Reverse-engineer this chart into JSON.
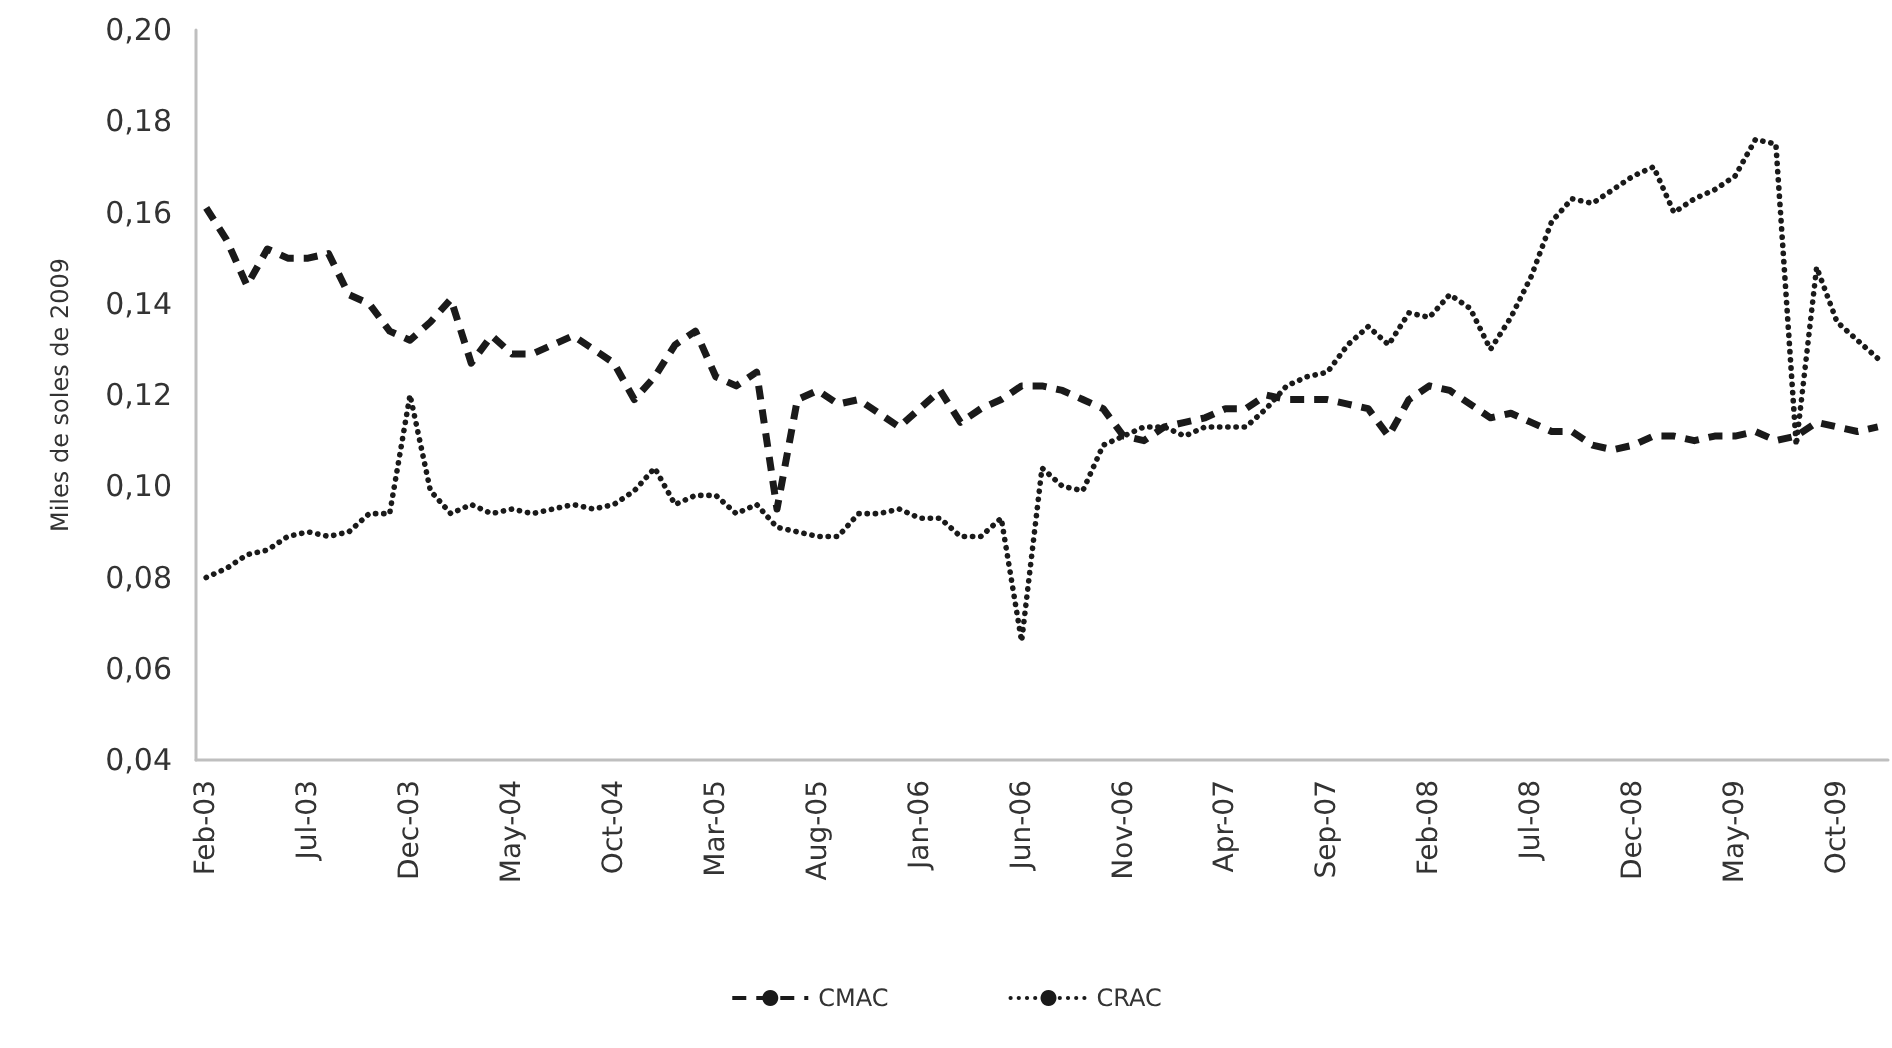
{
  "chart_data": {
    "type": "line",
    "ylabel": "Miles de soles de 2009",
    "categories": [
      "Feb-03",
      null,
      null,
      null,
      null,
      "Jul-03",
      null,
      null,
      null,
      null,
      "Dec-03",
      null,
      null,
      null,
      null,
      "May-04",
      null,
      null,
      null,
      null,
      "Oct-04",
      null,
      null,
      null,
      null,
      "Mar-05",
      null,
      null,
      null,
      null,
      "Aug-05",
      null,
      null,
      null,
      null,
      "Jan-06",
      null,
      null,
      null,
      null,
      "Jun-06",
      null,
      null,
      null,
      null,
      "Nov-06",
      null,
      null,
      null,
      null,
      "Apr-07",
      null,
      null,
      null,
      null,
      "Sep-07",
      null,
      null,
      null,
      null,
      "Feb-08",
      null,
      null,
      null,
      null,
      "Jul-08",
      null,
      null,
      null,
      null,
      "Dec-08",
      null,
      null,
      null,
      null,
      "May-09",
      null,
      null,
      null,
      null,
      "Oct-09",
      null,
      null
    ],
    "series": [
      {
        "name": "CMAC",
        "color": "#1a1a1a",
        "line_style": "dashed",
        "values": [
          0.161,
          0.154,
          0.144,
          0.152,
          0.15,
          0.15,
          0.151,
          0.142,
          0.14,
          0.134,
          0.132,
          0.136,
          0.141,
          0.127,
          0.133,
          0.129,
          0.129,
          0.131,
          0.133,
          0.13,
          0.127,
          0.119,
          0.124,
          0.131,
          0.134,
          0.124,
          0.122,
          0.125,
          0.095,
          0.119,
          0.121,
          0.118,
          0.119,
          0.116,
          0.113,
          0.117,
          0.121,
          0.114,
          0.117,
          0.119,
          0.122,
          0.122,
          0.121,
          0.119,
          0.117,
          0.111,
          0.11,
          0.113,
          0.114,
          0.115,
          0.117,
          0.117,
          0.12,
          0.119,
          0.119,
          0.119,
          0.118,
          0.117,
          0.111,
          0.119,
          0.122,
          0.121,
          0.118,
          0.115,
          0.116,
          0.114,
          0.112,
          0.112,
          0.109,
          0.108,
          0.109,
          0.111,
          0.111,
          0.11,
          0.111,
          0.111,
          0.112,
          0.11,
          0.111,
          0.114,
          0.113,
          0.112,
          0.113
        ]
      },
      {
        "name": "CRAC",
        "color": "#1a1a1a",
        "line_style": "dotted",
        "values": [
          0.08,
          0.082,
          0.085,
          0.086,
          0.089,
          0.09,
          0.089,
          0.09,
          0.094,
          0.094,
          0.12,
          0.099,
          0.094,
          0.096,
          0.094,
          0.095,
          0.094,
          0.095,
          0.096,
          0.095,
          0.096,
          0.099,
          0.104,
          0.096,
          0.098,
          0.098,
          0.094,
          0.096,
          0.091,
          0.09,
          0.089,
          0.089,
          0.094,
          0.094,
          0.095,
          0.093,
          0.093,
          0.089,
          0.089,
          0.093,
          0.066,
          0.104,
          0.1,
          0.099,
          0.109,
          0.111,
          0.113,
          0.113,
          0.111,
          0.113,
          0.113,
          0.113,
          0.117,
          0.122,
          0.124,
          0.125,
          0.131,
          0.135,
          0.131,
          0.138,
          0.137,
          0.142,
          0.139,
          0.13,
          0.137,
          0.146,
          0.158,
          0.163,
          0.162,
          0.165,
          0.168,
          0.17,
          0.16,
          0.163,
          0.165,
          0.168,
          0.176,
          0.175,
          0.109,
          0.148,
          0.136,
          0.132,
          0.128
        ]
      }
    ],
    "ylim": [
      0.04,
      0.2
    ],
    "yticks": [
      {
        "value": 0.04,
        "label": "0,04"
      },
      {
        "value": 0.06,
        "label": "0,06"
      },
      {
        "value": 0.08,
        "label": "0,08"
      },
      {
        "value": 0.1,
        "label": "0,10"
      },
      {
        "value": 0.12,
        "label": "0,12"
      },
      {
        "value": 0.14,
        "label": "0,14"
      },
      {
        "value": 0.16,
        "label": "0,16"
      },
      {
        "value": 0.18,
        "label": "0,18"
      },
      {
        "value": 0.2,
        "label": "0,20"
      }
    ],
    "grid": false,
    "legend": "bottom",
    "marker": "none"
  }
}
